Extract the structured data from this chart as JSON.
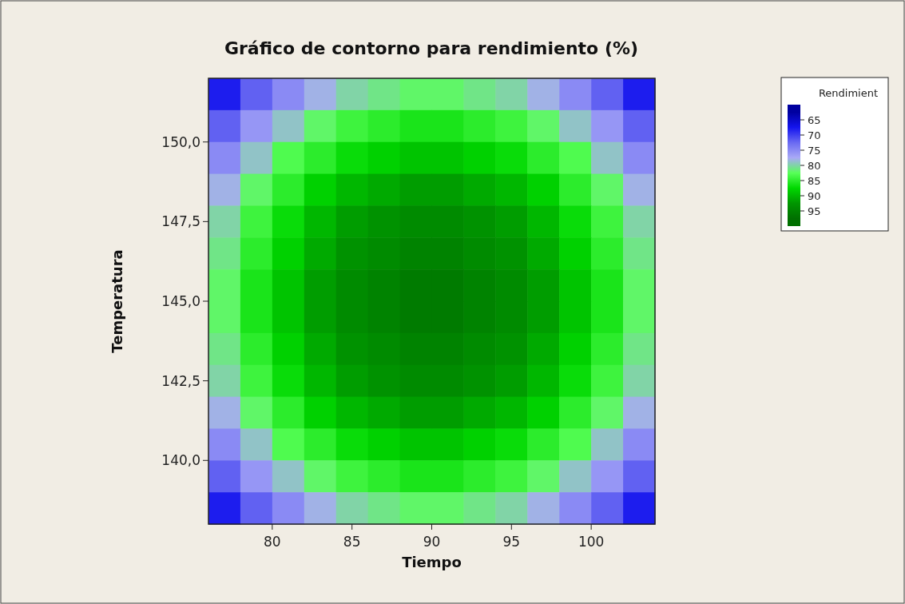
{
  "chart_data": {
    "type": "heatmap",
    "title": "Gráfico de contorno para rendimiento (%)",
    "xlabel": "Tiempo",
    "ylabel": "Temperatura",
    "clabel": "Rendimient",
    "x": [
      77,
      79,
      81,
      83,
      85,
      87,
      89,
      91,
      93,
      95,
      97,
      99,
      101,
      103
    ],
    "y": [
      151.5,
      150.5,
      149.5,
      148.5,
      147.5,
      146.5,
      145.5,
      144.5,
      143.5,
      142.5,
      141.5,
      140.5,
      139.5,
      138.5
    ],
    "cells": [
      [
        68,
        72,
        75,
        78,
        80,
        81,
        82,
        82,
        81,
        80,
        78,
        75,
        72,
        68
      ],
      [
        72,
        76,
        79,
        82,
        84,
        85,
        86,
        86,
        85,
        84,
        82,
        79,
        76,
        72
      ],
      [
        75,
        79,
        83,
        85,
        87,
        88,
        89,
        89,
        88,
        87,
        85,
        83,
        79,
        75
      ],
      [
        78,
        82,
        85,
        88,
        90,
        91,
        92,
        92,
        91,
        90,
        88,
        85,
        82,
        78
      ],
      [
        80,
        84,
        87,
        90,
        92,
        93,
        94,
        94,
        93,
        92,
        90,
        87,
        84,
        80
      ],
      [
        81,
        85,
        88,
        91,
        93,
        94,
        95,
        95,
        94,
        93,
        91,
        88,
        85,
        81
      ],
      [
        82,
        86,
        89,
        92,
        94,
        95,
        96,
        96,
        95,
        94,
        92,
        89,
        86,
        82
      ],
      [
        82,
        86,
        89,
        92,
        94,
        95,
        96,
        96,
        95,
        94,
        92,
        89,
        86,
        82
      ],
      [
        81,
        85,
        88,
        91,
        93,
        94,
        95,
        95,
        94,
        93,
        91,
        88,
        85,
        81
      ],
      [
        80,
        84,
        87,
        90,
        92,
        93,
        94,
        94,
        93,
        92,
        90,
        87,
        84,
        80
      ],
      [
        78,
        82,
        85,
        88,
        90,
        91,
        92,
        92,
        91,
        90,
        88,
        85,
        82,
        78
      ],
      [
        75,
        79,
        83,
        85,
        87,
        88,
        89,
        89,
        88,
        87,
        85,
        83,
        79,
        75
      ],
      [
        72,
        76,
        79,
        82,
        84,
        85,
        86,
        86,
        85,
        84,
        82,
        79,
        76,
        72
      ],
      [
        68,
        72,
        75,
        78,
        80,
        81,
        82,
        82,
        81,
        80,
        78,
        75,
        72,
        68
      ]
    ],
    "colors": [
      "#0000a0",
      "#1414ee",
      "#6a6af2",
      "#a9a9f6",
      "#58ff58",
      "#00d800",
      "#009600",
      "#007000"
    ],
    "clim": [
      60,
      100
    ],
    "cticks": [
      65,
      70,
      75,
      80,
      85,
      90,
      95
    ],
    "xlim": [
      76,
      104
    ],
    "ylim": [
      138,
      152
    ],
    "xticks": [
      80,
      85,
      90,
      95,
      100
    ],
    "yticks": [
      {
        "value": 140,
        "label": "140,0"
      },
      {
        "value": 142.5,
        "label": "142,5"
      },
      {
        "value": 145,
        "label": "145,0"
      },
      {
        "value": 147.5,
        "label": "147,5"
      },
      {
        "value": 150,
        "label": "150,0"
      }
    ]
  }
}
